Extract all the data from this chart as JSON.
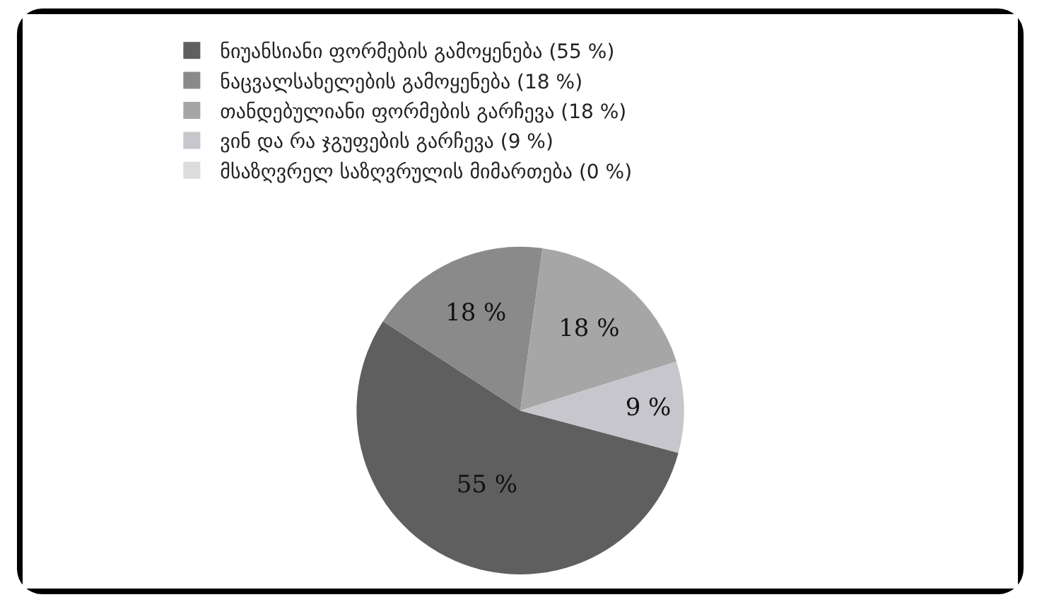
{
  "chart_data": {
    "type": "pie",
    "categories": [
      "ნიუანსიანი ფორმების გამოყენება (55 %)",
      "ნაცვალსახელების გამოყენება (18 %)",
      "თანდებულიანი ფორმების გარჩევა (18 %)",
      "ვინ და რა ჯგუფების გარჩევა (9 %)",
      "მსაზღვრელ საზღვრულის მიმართება (0 %)"
    ],
    "values": [
      55,
      18,
      18,
      9,
      0
    ],
    "colors": [
      "#5f5f5f",
      "#8a8a8a",
      "#a6a6a6",
      "#c6c6cc",
      "#dcdcdc"
    ],
    "value_labels": [
      "55 %",
      "18 %",
      "18 %",
      "9 %",
      null
    ],
    "legend": "top"
  }
}
